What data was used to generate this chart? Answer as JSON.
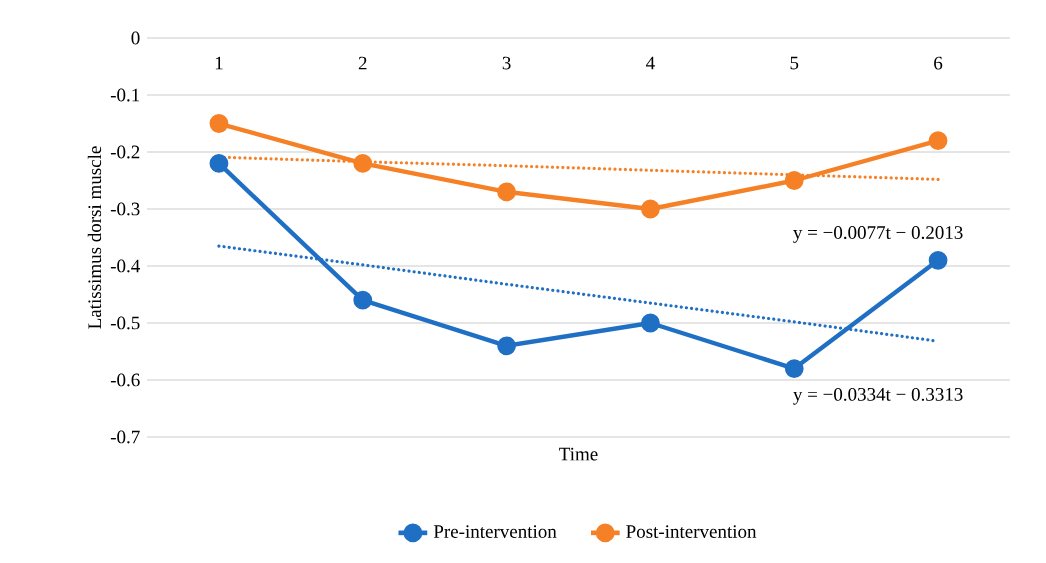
{
  "chart_data": {
    "type": "line",
    "xlabel": "Time",
    "ylabel": "Latissimus dorsi muscle",
    "x": [
      1,
      2,
      3,
      4,
      5,
      6
    ],
    "xlim": [
      0.5,
      6.5
    ],
    "xticks": [
      1,
      2,
      3,
      4,
      5,
      6
    ],
    "ylim": [
      -0.7,
      0
    ],
    "yticks": [
      -0.7,
      -0.6,
      -0.5,
      -0.4,
      -0.3,
      -0.2,
      -0.1,
      0
    ],
    "grid": "y",
    "legend": "bottom",
    "marker": "circle",
    "line_style": "solid",
    "series": [
      {
        "name": "Pre-intervention",
        "color": "#1f6fc4",
        "values": [
          -0.22,
          -0.46,
          -0.54,
          -0.5,
          -0.58,
          -0.39
        ]
      },
      {
        "name": "Post-intervention",
        "color": "#f58025",
        "values": [
          -0.15,
          -0.22,
          -0.27,
          -0.3,
          -0.25,
          -0.18
        ]
      },
      {
        "type": "line",
        "color": "#1f6fc4",
        "values": [
          -0.365,
          -0.398,
          -0.432,
          -0.465,
          -0.498,
          -0.532
        ],
        "marker": "none",
        "line_style": "dotted"
      },
      {
        "type": "line",
        "color": "#f58025",
        "values": [
          -0.209,
          -0.217,
          -0.224,
          -0.232,
          -0.24,
          -0.248
        ],
        "marker": "none",
        "line_style": "dotted"
      }
    ],
    "annotations": [
      {
        "text": "y = −0.0334t − 0.3313",
        "x": 6,
        "y": -0.532
      },
      {
        "text": "y = −0.0077t − 0.2013",
        "x": 6,
        "y": -0.248
      }
    ]
  }
}
